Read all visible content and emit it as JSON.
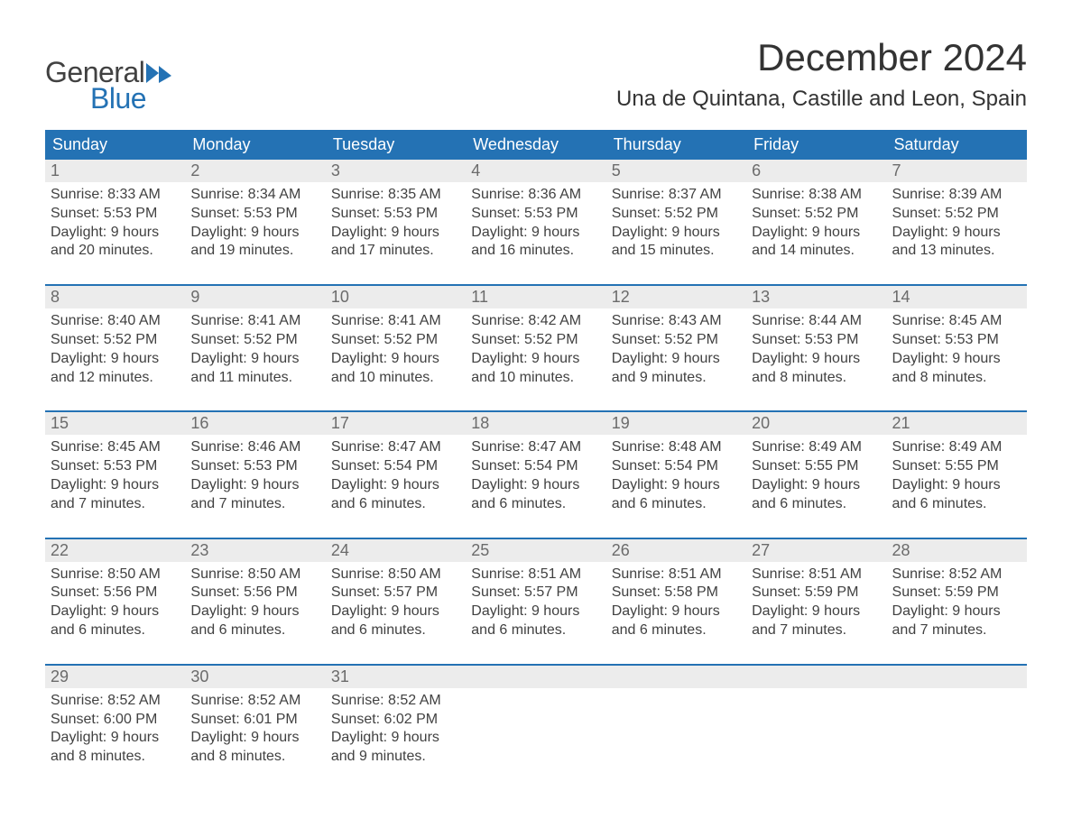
{
  "logo": {
    "text_general": "General",
    "text_blue": "Blue",
    "shape_color": "#2472b4"
  },
  "title": {
    "month": "December 2024",
    "location": "Una de Quintana, Castille and Leon, Spain"
  },
  "colors": {
    "header_bg": "#2472b4",
    "header_text": "#ffffff",
    "daynum_bg": "#ececec",
    "body_text": "#414141",
    "daynum_text": "#6b6b6b",
    "week_border": "#2472b4",
    "background": "#ffffff"
  },
  "typography": {
    "month_fontsize": 42,
    "location_fontsize": 24,
    "dayheader_fontsize": 18,
    "daynum_fontsize": 18,
    "detail_fontsize": 16,
    "font_family": "Arial"
  },
  "day_headers": [
    "Sunday",
    "Monday",
    "Tuesday",
    "Wednesday",
    "Thursday",
    "Friday",
    "Saturday"
  ],
  "weeks": [
    [
      {
        "n": "1",
        "sunrise": "Sunrise: 8:33 AM",
        "sunset": "Sunset: 5:53 PM",
        "daylight": "Daylight: 9 hours and 20 minutes."
      },
      {
        "n": "2",
        "sunrise": "Sunrise: 8:34 AM",
        "sunset": "Sunset: 5:53 PM",
        "daylight": "Daylight: 9 hours and 19 minutes."
      },
      {
        "n": "3",
        "sunrise": "Sunrise: 8:35 AM",
        "sunset": "Sunset: 5:53 PM",
        "daylight": "Daylight: 9 hours and 17 minutes."
      },
      {
        "n": "4",
        "sunrise": "Sunrise: 8:36 AM",
        "sunset": "Sunset: 5:53 PM",
        "daylight": "Daylight: 9 hours and 16 minutes."
      },
      {
        "n": "5",
        "sunrise": "Sunrise: 8:37 AM",
        "sunset": "Sunset: 5:52 PM",
        "daylight": "Daylight: 9 hours and 15 minutes."
      },
      {
        "n": "6",
        "sunrise": "Sunrise: 8:38 AM",
        "sunset": "Sunset: 5:52 PM",
        "daylight": "Daylight: 9 hours and 14 minutes."
      },
      {
        "n": "7",
        "sunrise": "Sunrise: 8:39 AM",
        "sunset": "Sunset: 5:52 PM",
        "daylight": "Daylight: 9 hours and 13 minutes."
      }
    ],
    [
      {
        "n": "8",
        "sunrise": "Sunrise: 8:40 AM",
        "sunset": "Sunset: 5:52 PM",
        "daylight": "Daylight: 9 hours and 12 minutes."
      },
      {
        "n": "9",
        "sunrise": "Sunrise: 8:41 AM",
        "sunset": "Sunset: 5:52 PM",
        "daylight": "Daylight: 9 hours and 11 minutes."
      },
      {
        "n": "10",
        "sunrise": "Sunrise: 8:41 AM",
        "sunset": "Sunset: 5:52 PM",
        "daylight": "Daylight: 9 hours and 10 minutes."
      },
      {
        "n": "11",
        "sunrise": "Sunrise: 8:42 AM",
        "sunset": "Sunset: 5:52 PM",
        "daylight": "Daylight: 9 hours and 10 minutes."
      },
      {
        "n": "12",
        "sunrise": "Sunrise: 8:43 AM",
        "sunset": "Sunset: 5:52 PM",
        "daylight": "Daylight: 9 hours and 9 minutes."
      },
      {
        "n": "13",
        "sunrise": "Sunrise: 8:44 AM",
        "sunset": "Sunset: 5:53 PM",
        "daylight": "Daylight: 9 hours and 8 minutes."
      },
      {
        "n": "14",
        "sunrise": "Sunrise: 8:45 AM",
        "sunset": "Sunset: 5:53 PM",
        "daylight": "Daylight: 9 hours and 8 minutes."
      }
    ],
    [
      {
        "n": "15",
        "sunrise": "Sunrise: 8:45 AM",
        "sunset": "Sunset: 5:53 PM",
        "daylight": "Daylight: 9 hours and 7 minutes."
      },
      {
        "n": "16",
        "sunrise": "Sunrise: 8:46 AM",
        "sunset": "Sunset: 5:53 PM",
        "daylight": "Daylight: 9 hours and 7 minutes."
      },
      {
        "n": "17",
        "sunrise": "Sunrise: 8:47 AM",
        "sunset": "Sunset: 5:54 PM",
        "daylight": "Daylight: 9 hours and 6 minutes."
      },
      {
        "n": "18",
        "sunrise": "Sunrise: 8:47 AM",
        "sunset": "Sunset: 5:54 PM",
        "daylight": "Daylight: 9 hours and 6 minutes."
      },
      {
        "n": "19",
        "sunrise": "Sunrise: 8:48 AM",
        "sunset": "Sunset: 5:54 PM",
        "daylight": "Daylight: 9 hours and 6 minutes."
      },
      {
        "n": "20",
        "sunrise": "Sunrise: 8:49 AM",
        "sunset": "Sunset: 5:55 PM",
        "daylight": "Daylight: 9 hours and 6 minutes."
      },
      {
        "n": "21",
        "sunrise": "Sunrise: 8:49 AM",
        "sunset": "Sunset: 5:55 PM",
        "daylight": "Daylight: 9 hours and 6 minutes."
      }
    ],
    [
      {
        "n": "22",
        "sunrise": "Sunrise: 8:50 AM",
        "sunset": "Sunset: 5:56 PM",
        "daylight": "Daylight: 9 hours and 6 minutes."
      },
      {
        "n": "23",
        "sunrise": "Sunrise: 8:50 AM",
        "sunset": "Sunset: 5:56 PM",
        "daylight": "Daylight: 9 hours and 6 minutes."
      },
      {
        "n": "24",
        "sunrise": "Sunrise: 8:50 AM",
        "sunset": "Sunset: 5:57 PM",
        "daylight": "Daylight: 9 hours and 6 minutes."
      },
      {
        "n": "25",
        "sunrise": "Sunrise: 8:51 AM",
        "sunset": "Sunset: 5:57 PM",
        "daylight": "Daylight: 9 hours and 6 minutes."
      },
      {
        "n": "26",
        "sunrise": "Sunrise: 8:51 AM",
        "sunset": "Sunset: 5:58 PM",
        "daylight": "Daylight: 9 hours and 6 minutes."
      },
      {
        "n": "27",
        "sunrise": "Sunrise: 8:51 AM",
        "sunset": "Sunset: 5:59 PM",
        "daylight": "Daylight: 9 hours and 7 minutes."
      },
      {
        "n": "28",
        "sunrise": "Sunrise: 8:52 AM",
        "sunset": "Sunset: 5:59 PM",
        "daylight": "Daylight: 9 hours and 7 minutes."
      }
    ],
    [
      {
        "n": "29",
        "sunrise": "Sunrise: 8:52 AM",
        "sunset": "Sunset: 6:00 PM",
        "daylight": "Daylight: 9 hours and 8 minutes."
      },
      {
        "n": "30",
        "sunrise": "Sunrise: 8:52 AM",
        "sunset": "Sunset: 6:01 PM",
        "daylight": "Daylight: 9 hours and 8 minutes."
      },
      {
        "n": "31",
        "sunrise": "Sunrise: 8:52 AM",
        "sunset": "Sunset: 6:02 PM",
        "daylight": "Daylight: 9 hours and 9 minutes."
      },
      {
        "empty": true
      },
      {
        "empty": true
      },
      {
        "empty": true
      },
      {
        "empty": true
      }
    ]
  ]
}
